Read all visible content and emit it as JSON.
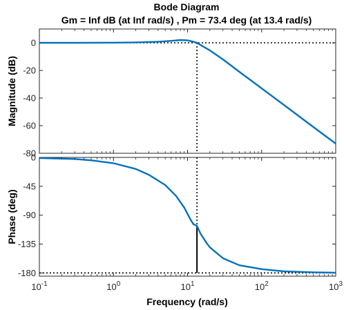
{
  "chart_data": {
    "type": "line",
    "title": "Bode Diagram",
    "subtitle": "Gm = Inf dB (at Inf rad/s) ,  Pm = 73.4 deg (at 13.4 rad/s)",
    "xlabel": "Frequency  (rad/s)",
    "xscale": "log",
    "xlim": [
      0.1,
      1000
    ],
    "x_ticks": [
      {
        "value": 0.1,
        "base": "10",
        "exp": "-1"
      },
      {
        "value": 1,
        "base": "10",
        "exp": "0"
      },
      {
        "value": 10,
        "base": "10",
        "exp": "1"
      },
      {
        "value": 100,
        "base": "10",
        "exp": "2"
      },
      {
        "value": 1000,
        "base": "10",
        "exp": "3"
      }
    ],
    "color": "#0072BD",
    "crossover_frequency": 13.4,
    "phase_margin_deg": 73.4,
    "magnitude": {
      "ylabel": "Magnitude (dB)",
      "ylim": [
        -80,
        10
      ],
      "yticks": [
        0,
        -20,
        -40,
        -60,
        -80
      ],
      "reference_line": 0,
      "points": [
        [
          0.1,
          0
        ],
        [
          0.3,
          0
        ],
        [
          1,
          0.1
        ],
        [
          2,
          0.3
        ],
        [
          4,
          0.8
        ],
        [
          6,
          1.4
        ],
        [
          8,
          2.0
        ],
        [
          10,
          1.8
        ],
        [
          12,
          0.8
        ],
        [
          13.4,
          0
        ],
        [
          15,
          -1.6
        ],
        [
          20,
          -5.5
        ],
        [
          30,
          -12
        ],
        [
          50,
          -21
        ],
        [
          100,
          -33
        ],
        [
          200,
          -45
        ],
        [
          500,
          -61
        ],
        [
          1000,
          -73
        ]
      ]
    },
    "phase": {
      "ylabel": "Phase (deg)",
      "ylim": [
        -185,
        0
      ],
      "yticks": [
        0,
        -45,
        -90,
        -135,
        -180
      ],
      "reference_line": -180,
      "points": [
        [
          0.1,
          -1
        ],
        [
          0.3,
          -2.5
        ],
        [
          0.5,
          -4.5
        ],
        [
          1,
          -9
        ],
        [
          2,
          -18
        ],
        [
          3,
          -27
        ],
        [
          5,
          -43
        ],
        [
          7,
          -60
        ],
        [
          9,
          -78
        ],
        [
          10,
          -88
        ],
        [
          11,
          -97
        ],
        [
          12,
          -104
        ],
        [
          13.4,
          -106.6
        ],
        [
          15,
          -119
        ],
        [
          18,
          -133
        ],
        [
          20,
          -140
        ],
        [
          30,
          -157
        ],
        [
          50,
          -168
        ],
        [
          100,
          -174
        ],
        [
          200,
          -177.5
        ],
        [
          500,
          -179
        ],
        [
          1000,
          -179.5
        ]
      ]
    }
  }
}
